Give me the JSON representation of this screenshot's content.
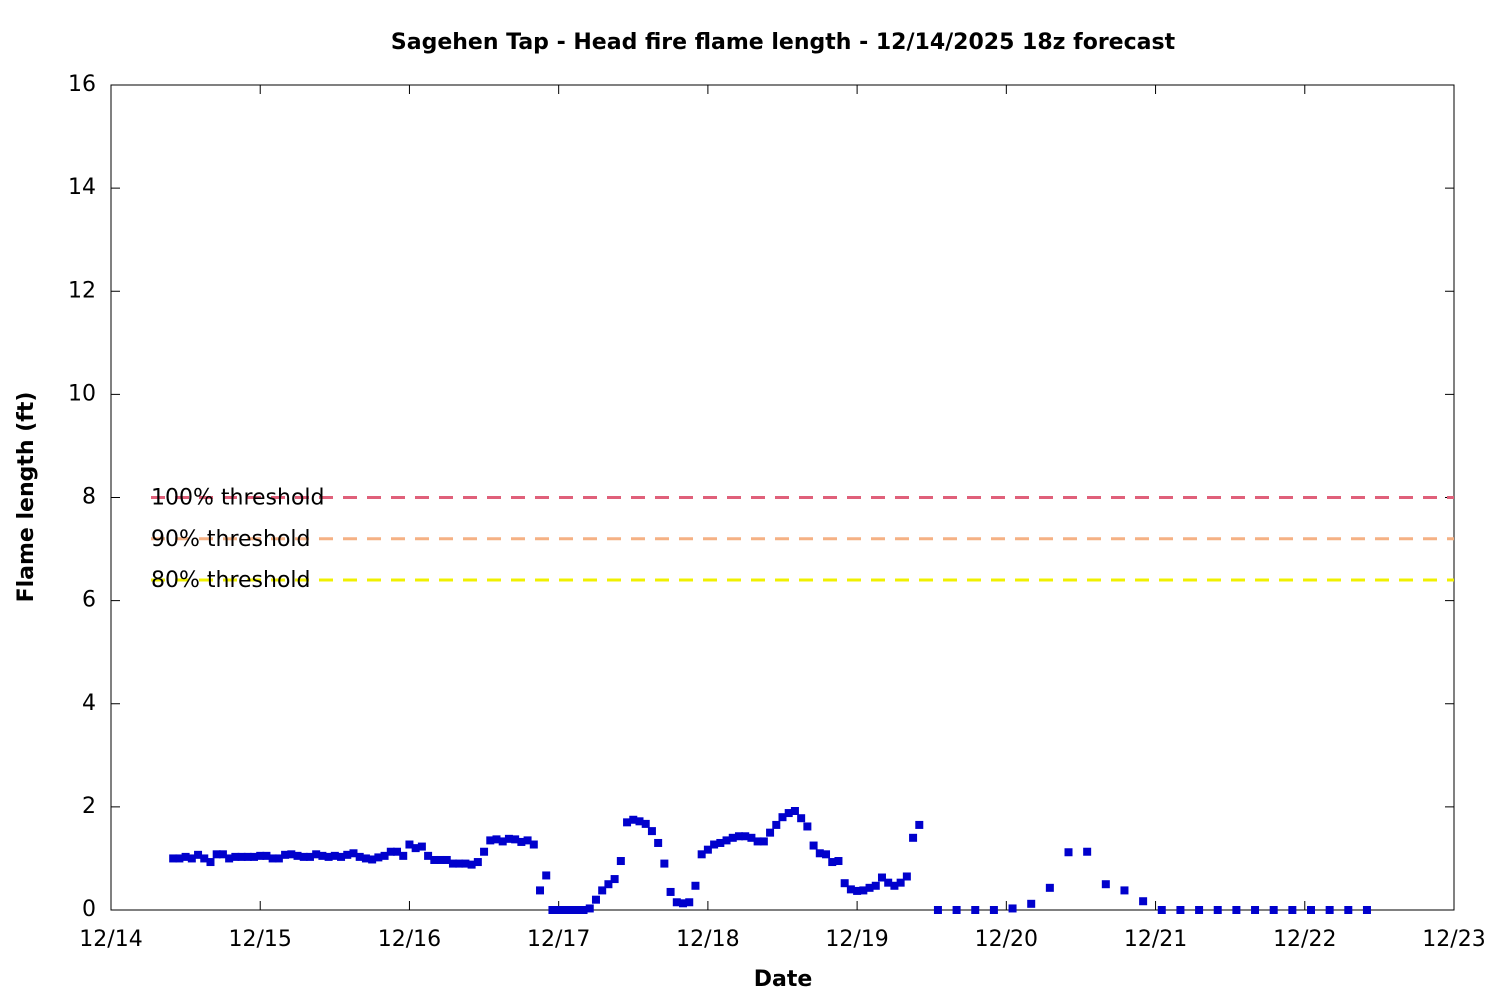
{
  "chart_data": {
    "type": "scatter",
    "title": "Sagehen Tap - Head fire flame length - 12/14/2025 18z forecast",
    "xlabel": "Date",
    "ylabel": "Flame length (ft)",
    "x": [
      10,
      11,
      12,
      13,
      14,
      15,
      16,
      17,
      18,
      19,
      20,
      21,
      22,
      23,
      24,
      25,
      26,
      27,
      28,
      29,
      30,
      31,
      32,
      33,
      34,
      35,
      36,
      37,
      38,
      39,
      40,
      41,
      42,
      43,
      44,
      45,
      46,
      47,
      48,
      49,
      50,
      51,
      52,
      53,
      54,
      55,
      56,
      57,
      58,
      59,
      60,
      61,
      62,
      63,
      64,
      65,
      66,
      67,
      68,
      69,
      70,
      71,
      72,
      73,
      74,
      75,
      76,
      77,
      78,
      79,
      80,
      81,
      82,
      83,
      84,
      85,
      86,
      87,
      88,
      89,
      90,
      91,
      92,
      93,
      94,
      95,
      96,
      97,
      98,
      99,
      100,
      101,
      102,
      103,
      104,
      105,
      106,
      107,
      108,
      109,
      110,
      111,
      112,
      113,
      114,
      115,
      116,
      117,
      118,
      119,
      120,
      121,
      122,
      123,
      124,
      125,
      126,
      127,
      128,
      129,
      130,
      133,
      136,
      139,
      142,
      145,
      148,
      151,
      154,
      157,
      160,
      163,
      166,
      169,
      172,
      175,
      178,
      181,
      184,
      187,
      190,
      193,
      196,
      199,
      202
    ],
    "series": [
      {
        "name": "Flame length",
        "color": "#0000cc",
        "values": [
          1.0,
          1.0,
          1.03,
          1.0,
          1.07,
          1.0,
          0.93,
          1.08,
          1.08,
          1.0,
          1.03,
          1.03,
          1.03,
          1.03,
          1.05,
          1.05,
          1.0,
          1.0,
          1.07,
          1.08,
          1.05,
          1.03,
          1.03,
          1.08,
          1.05,
          1.03,
          1.05,
          1.03,
          1.07,
          1.1,
          1.03,
          1.0,
          0.98,
          1.02,
          1.05,
          1.13,
          1.13,
          1.05,
          1.27,
          1.2,
          1.23,
          1.05,
          0.97,
          0.97,
          0.97,
          0.9,
          0.9,
          0.9,
          0.88,
          0.93,
          1.13,
          1.35,
          1.37,
          1.33,
          1.38,
          1.37,
          1.32,
          1.35,
          1.27,
          0.38,
          0.67,
          0,
          0,
          0,
          0,
          0,
          0,
          0.03,
          0.2,
          0.38,
          0.5,
          0.6,
          0.95,
          1.7,
          1.75,
          1.72,
          1.67,
          1.53,
          1.3,
          0.9,
          0.35,
          0.15,
          0.13,
          0.15,
          0.47,
          1.08,
          1.17,
          1.27,
          1.3,
          1.35,
          1.4,
          1.43,
          1.43,
          1.4,
          1.33,
          1.33,
          1.5,
          1.65,
          1.8,
          1.88,
          1.92,
          1.78,
          1.62,
          1.25,
          1.1,
          1.08,
          0.93,
          0.95,
          0.52,
          0.4,
          0.37,
          0.38,
          0.43,
          0.47,
          0.63,
          0.53,
          0.47,
          0.53,
          0.65,
          1.4,
          1.65,
          0,
          0,
          0,
          0,
          0.03,
          0.12,
          0.43,
          1.12,
          1.13,
          0.5,
          0.38,
          0.17,
          0,
          0,
          0,
          0,
          0,
          0,
          0,
          0,
          0,
          0,
          0,
          0
        ]
      }
    ],
    "thresholds": [
      {
        "name": "100% threshold",
        "value": 8,
        "color": "#e0607a"
      },
      {
        "name": "90% threshold",
        "value": 7.2,
        "color": "#f5b184"
      },
      {
        "name": "80% threshold",
        "value": 6.4,
        "color": "#f0f000"
      }
    ],
    "xlim": [
      0,
      216
    ],
    "xticks": [
      {
        "value": 0,
        "label": "12/14"
      },
      {
        "value": 24,
        "label": "12/15"
      },
      {
        "value": 48,
        "label": "12/16"
      },
      {
        "value": 72,
        "label": "12/17"
      },
      {
        "value": 96,
        "label": "12/18"
      },
      {
        "value": 120,
        "label": "12/19"
      },
      {
        "value": 144,
        "label": "12/20"
      },
      {
        "value": 168,
        "label": "12/21"
      },
      {
        "value": 192,
        "label": "12/22"
      },
      {
        "value": 216,
        "label": "12/23"
      }
    ],
    "ylim": [
      0,
      16
    ],
    "yticks": [
      0,
      2,
      4,
      6,
      8,
      10,
      12,
      14,
      16
    ]
  }
}
